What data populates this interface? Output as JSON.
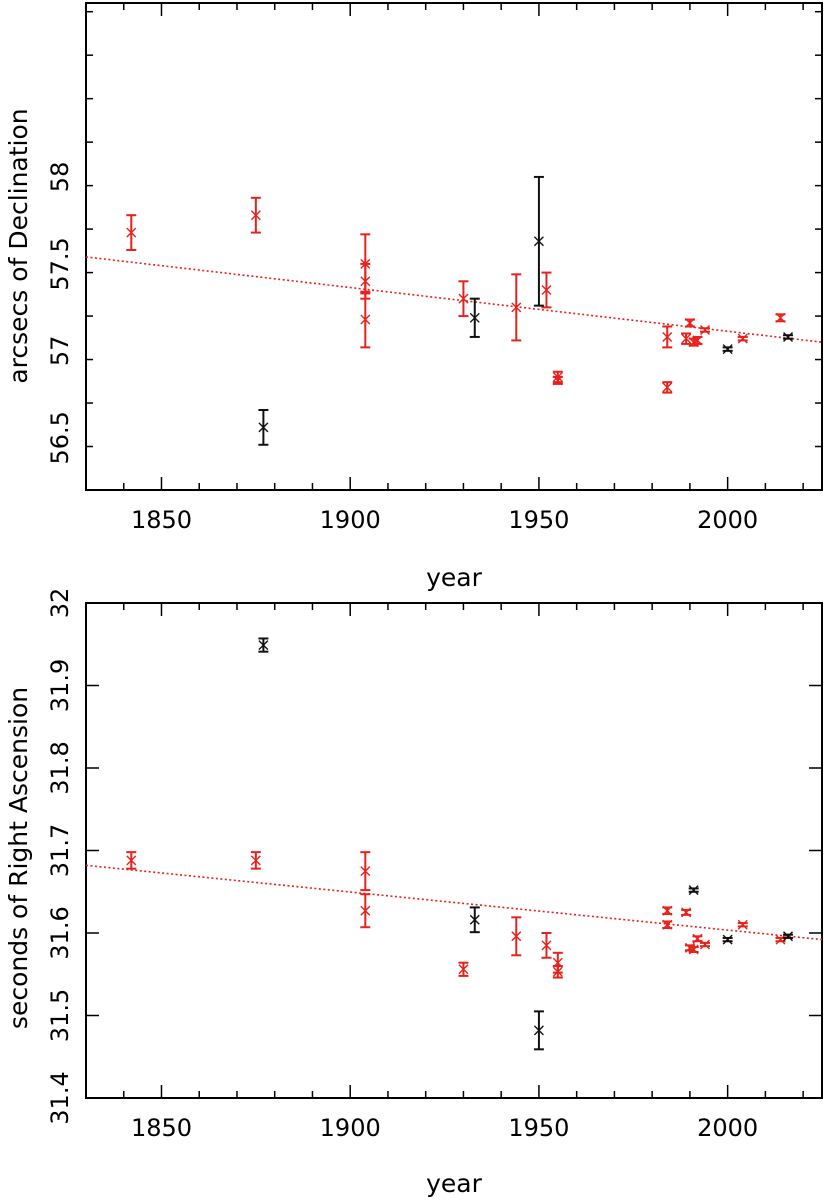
{
  "chart_data": [
    {
      "type": "scatter",
      "title": "",
      "xlabel": "year",
      "ylabel": "arcsecs of Declination",
      "xlim": [
        1830,
        2025
      ],
      "ylim": [
        56.2,
        59.0
      ],
      "xticks": [
        1850,
        1900,
        1950,
        2000
      ],
      "xtick_labels": [
        "1850",
        "1900",
        "1950",
        "2000"
      ],
      "yticks": [
        56.5,
        57,
        57.5,
        58
      ],
      "ytick_labels": [
        "56.5",
        "57",
        "57.5",
        "58"
      ],
      "grid": false,
      "series": [
        {
          "color": "#e8211c",
          "points": [
            {
              "x": 1842,
              "y": 57.68,
              "err": 0.1
            },
            {
              "x": 1875,
              "y": 57.78,
              "err": 0.1
            },
            {
              "x": 1904,
              "y": 57.5,
              "err": 0.17
            },
            {
              "x": 1904,
              "y": 57.4,
              "err": 0.1
            },
            {
              "x": 1904,
              "y": 57.18,
              "err": 0.16
            },
            {
              "x": 1930,
              "y": 57.3,
              "err": 0.1
            },
            {
              "x": 1944,
              "y": 57.25,
              "err": 0.19
            },
            {
              "x": 1952,
              "y": 57.35,
              "err": 0.1
            },
            {
              "x": 1955,
              "y": 56.85,
              "err": 0.03
            },
            {
              "x": 1955,
              "y": 56.83,
              "err": 0.02
            },
            {
              "x": 1984,
              "y": 57.08,
              "err": 0.06
            },
            {
              "x": 1984,
              "y": 56.79,
              "err": 0.03
            },
            {
              "x": 1989,
              "y": 57.07,
              "err": 0.03
            },
            {
              "x": 1990,
              "y": 57.16,
              "err": 0.02
            },
            {
              "x": 1991,
              "y": 57.05,
              "err": 0.02
            },
            {
              "x": 1992,
              "y": 57.06,
              "err": 0.02
            },
            {
              "x": 1994,
              "y": 57.12,
              "err": 0.01
            },
            {
              "x": 2004,
              "y": 57.07,
              "err": 0.01
            },
            {
              "x": 2014,
              "y": 57.19,
              "err": 0.02
            }
          ]
        },
        {
          "color": "#111111",
          "points": [
            {
              "x": 1877,
              "y": 56.56,
              "err": 0.1
            },
            {
              "x": 1933,
              "y": 57.19,
              "err": 0.11
            },
            {
              "x": 1950,
              "y": 57.63,
              "err": 0.37
            },
            {
              "x": 2000,
              "y": 57.01,
              "err": 0.01
            },
            {
              "x": 2016,
              "y": 57.08,
              "err": 0.01
            }
          ]
        }
      ],
      "fit_line": {
        "x": [
          1830,
          2025
        ],
        "y": [
          57.54,
          57.05
        ],
        "color": "#e8211c",
        "style": "dotted"
      }
    },
    {
      "type": "scatter",
      "title": "",
      "xlabel": "year",
      "ylabel": "seconds of Right Ascension",
      "xlim": [
        1830,
        2025
      ],
      "ylim": [
        31.4,
        32.0
      ],
      "xticks": [
        1850,
        1900,
        1950,
        2000
      ],
      "xtick_labels": [
        "1850",
        "1900",
        "1950",
        "2000"
      ],
      "yticks": [
        31.4,
        31.5,
        31.6,
        31.7,
        31.8,
        31.9,
        32
      ],
      "ytick_labels": [
        "31.4",
        "31.5",
        "31.6",
        "31.7",
        "31.8",
        "31.9",
        "32"
      ],
      "grid": false,
      "series": [
        {
          "color": "#e8211c",
          "points": [
            {
              "x": 1842,
              "y": 31.688,
              "err": 0.01
            },
            {
              "x": 1875,
              "y": 31.688,
              "err": 0.01
            },
            {
              "x": 1904,
              "y": 31.675,
              "err": 0.023
            },
            {
              "x": 1904,
              "y": 31.627,
              "err": 0.02
            },
            {
              "x": 1930,
              "y": 31.556,
              "err": 0.008
            },
            {
              "x": 1944,
              "y": 31.596,
              "err": 0.023
            },
            {
              "x": 1952,
              "y": 31.585,
              "err": 0.015
            },
            {
              "x": 1955,
              "y": 31.564,
              "err": 0.012
            },
            {
              "x": 1955,
              "y": 31.553,
              "err": 0.007
            },
            {
              "x": 1984,
              "y": 31.627,
              "err": 0.004
            },
            {
              "x": 1984,
              "y": 31.61,
              "err": 0.004
            },
            {
              "x": 1989,
              "y": 31.625,
              "err": 0.003
            },
            {
              "x": 1990,
              "y": 31.582,
              "err": 0.003
            },
            {
              "x": 1991,
              "y": 31.58,
              "err": 0.003
            },
            {
              "x": 1992,
              "y": 31.593,
              "err": 0.003
            },
            {
              "x": 1994,
              "y": 31.586,
              "err": 0.002
            },
            {
              "x": 2004,
              "y": 31.61,
              "err": 0.002
            },
            {
              "x": 2014,
              "y": 31.592,
              "err": 0.002
            }
          ]
        },
        {
          "color": "#111111",
          "points": [
            {
              "x": 1877,
              "y": 31.949,
              "err": 0.008
            },
            {
              "x": 1933,
              "y": 31.616,
              "err": 0.015
            },
            {
              "x": 1950,
              "y": 31.482,
              "err": 0.023
            },
            {
              "x": 1991,
              "y": 31.652,
              "err": 0.002
            },
            {
              "x": 2000,
              "y": 31.592,
              "err": 0.002
            },
            {
              "x": 2016,
              "y": 31.596,
              "err": 0.002
            }
          ]
        }
      ],
      "fit_line": {
        "x": [
          1830,
          2025
        ],
        "y": [
          31.682,
          31.592
        ],
        "color": "#e8211c",
        "style": "dotted"
      }
    }
  ]
}
